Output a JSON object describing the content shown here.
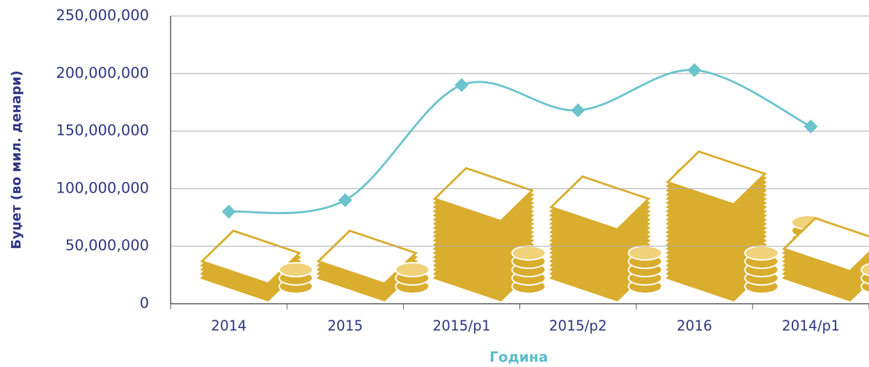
{
  "chart_data": {
    "type": "line",
    "y_label": "Буџет (во мил. денари)",
    "x_label": "Година",
    "categories": [
      "2014",
      "2015",
      "2015/p1",
      "2015/p2",
      "2016",
      "2014/p1"
    ],
    "values": [
      80000000,
      90000000,
      190000000,
      168000000,
      203000000,
      154000000
    ],
    "color": "#6cc3cc",
    "smooth": true,
    "grid": true,
    "ylim": [
      0,
      250000000
    ],
    "yticks": [
      {
        "value": 0,
        "label": "0"
      },
      {
        "value": 50000000,
        "label": "50,000,000"
      },
      {
        "value": 100000000,
        "label": "100,000,000"
      },
      {
        "value": 150000000,
        "label": "150,000,000"
      },
      {
        "value": 200000000,
        "label": "200,000,000"
      },
      {
        "value": 250000000,
        "label": "250,000,000"
      }
    ]
  }
}
